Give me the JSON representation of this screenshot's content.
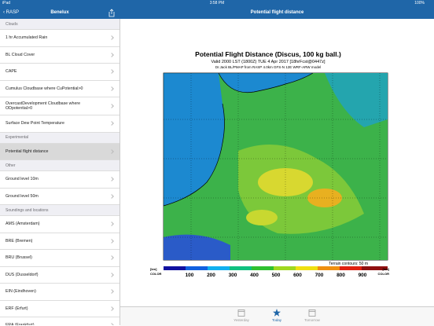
{
  "status": {
    "device": "iPad",
    "time": "3:58 PM",
    "battery": "100%"
  },
  "sidebar": {
    "back": "RASP",
    "title": "Benelux",
    "sections": [
      {
        "header": "Clouds",
        "items": [
          "1 hr Accumulated Rain",
          "BL Cloud Cover",
          "CAPE",
          "Cumulus Cloudbase where CuPotential>0",
          "OvercastDevelopment Cloudbase where ODpotential>0",
          "Surface Dew Point Temperature"
        ]
      },
      {
        "header": "Experimental",
        "items": [
          "Potential flight distance"
        ]
      },
      {
        "header": "Other",
        "items": [
          "Ground level 10m",
          "Ground level 50m"
        ]
      },
      {
        "header": "Soundings and locations",
        "items": [
          "AMS (Amsterdam)",
          "BRE (Bremen)",
          "BRU (Brussel)",
          "DUS (Dusseldorf)",
          "EIN (Eindhoven)",
          "ERF (Erfurt)",
          "FRA (Frankfurt)"
        ]
      }
    ]
  },
  "detail": {
    "title": "Potential flight distance",
    "figure": {
      "title": "Potential Flight Distance (Discus, 100 kg ball.)",
      "subtitle": "Valid 2000 LST (1800Z) TUE 4 Apr 2017 [18hrFcst@0447z]",
      "credit": "Dr.Jack BL/PMAP from RASP 4.0km GFS-N 12E WRF-ARW model",
      "unit": "[km]",
      "unit_note": "COLOR",
      "legend": [
        "100",
        "200",
        "300",
        "400",
        "500",
        "600",
        "700",
        "800",
        "900"
      ],
      "terrain": "Terrain contours: 50 m"
    },
    "tabs": [
      "Yesterday",
      "Today",
      "Tomorrow"
    ]
  }
}
